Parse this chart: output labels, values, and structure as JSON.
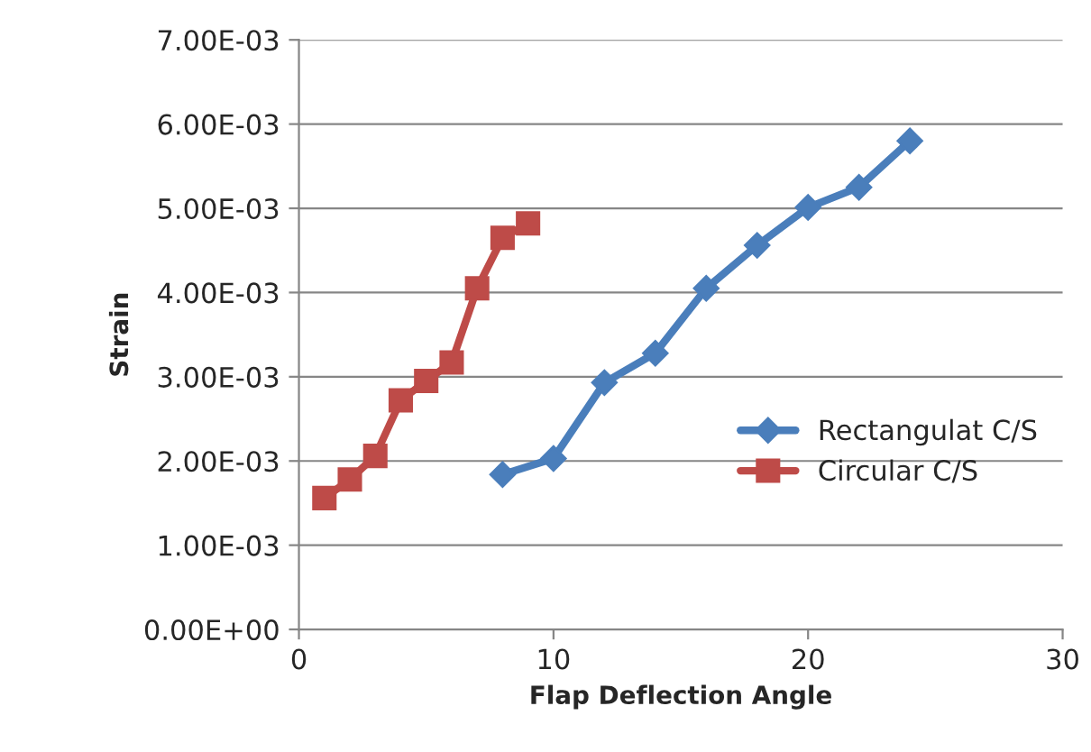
{
  "chart_data": {
    "type": "line",
    "xlabel": "Flap Deflection Angle",
    "ylabel": "Strain",
    "xlim": [
      0,
      30
    ],
    "xticks": [
      0,
      10,
      20,
      30
    ],
    "ylim": [
      0,
      0.007
    ],
    "yticks": [
      {
        "value": 0,
        "label": "0.00E+00"
      },
      {
        "value": 0.001,
        "label": "1.00E-03"
      },
      {
        "value": 0.002,
        "label": "2.00E-03"
      },
      {
        "value": 0.003,
        "label": "3.00E-03"
      },
      {
        "value": 0.004,
        "label": "4.00E-03"
      },
      {
        "value": 0.005,
        "label": "5.00E-03"
      },
      {
        "value": 0.006,
        "label": "6.00E-03"
      },
      {
        "value": 0.007,
        "label": "7.00E-03"
      }
    ],
    "grid": "y",
    "legend": "right",
    "series": [
      {
        "name": "Rectangulat C/S",
        "color": "#4a7ebb",
        "marker": "diamond",
        "x": [
          8,
          10,
          12,
          14,
          16,
          18,
          20,
          22,
          24
        ],
        "values": [
          0.00184,
          0.00203,
          0.00293,
          0.00328,
          0.00405,
          0.00456,
          0.00501,
          0.00525,
          0.0058
        ]
      },
      {
        "name": "Circular C/S",
        "color": "#be4b48",
        "marker": "square",
        "x": [
          1,
          2,
          3,
          4,
          5,
          6,
          7,
          8,
          9
        ],
        "values": [
          0.00156,
          0.00178,
          0.00206,
          0.00272,
          0.00295,
          0.00317,
          0.00405,
          0.00465,
          0.00482
        ]
      }
    ]
  }
}
